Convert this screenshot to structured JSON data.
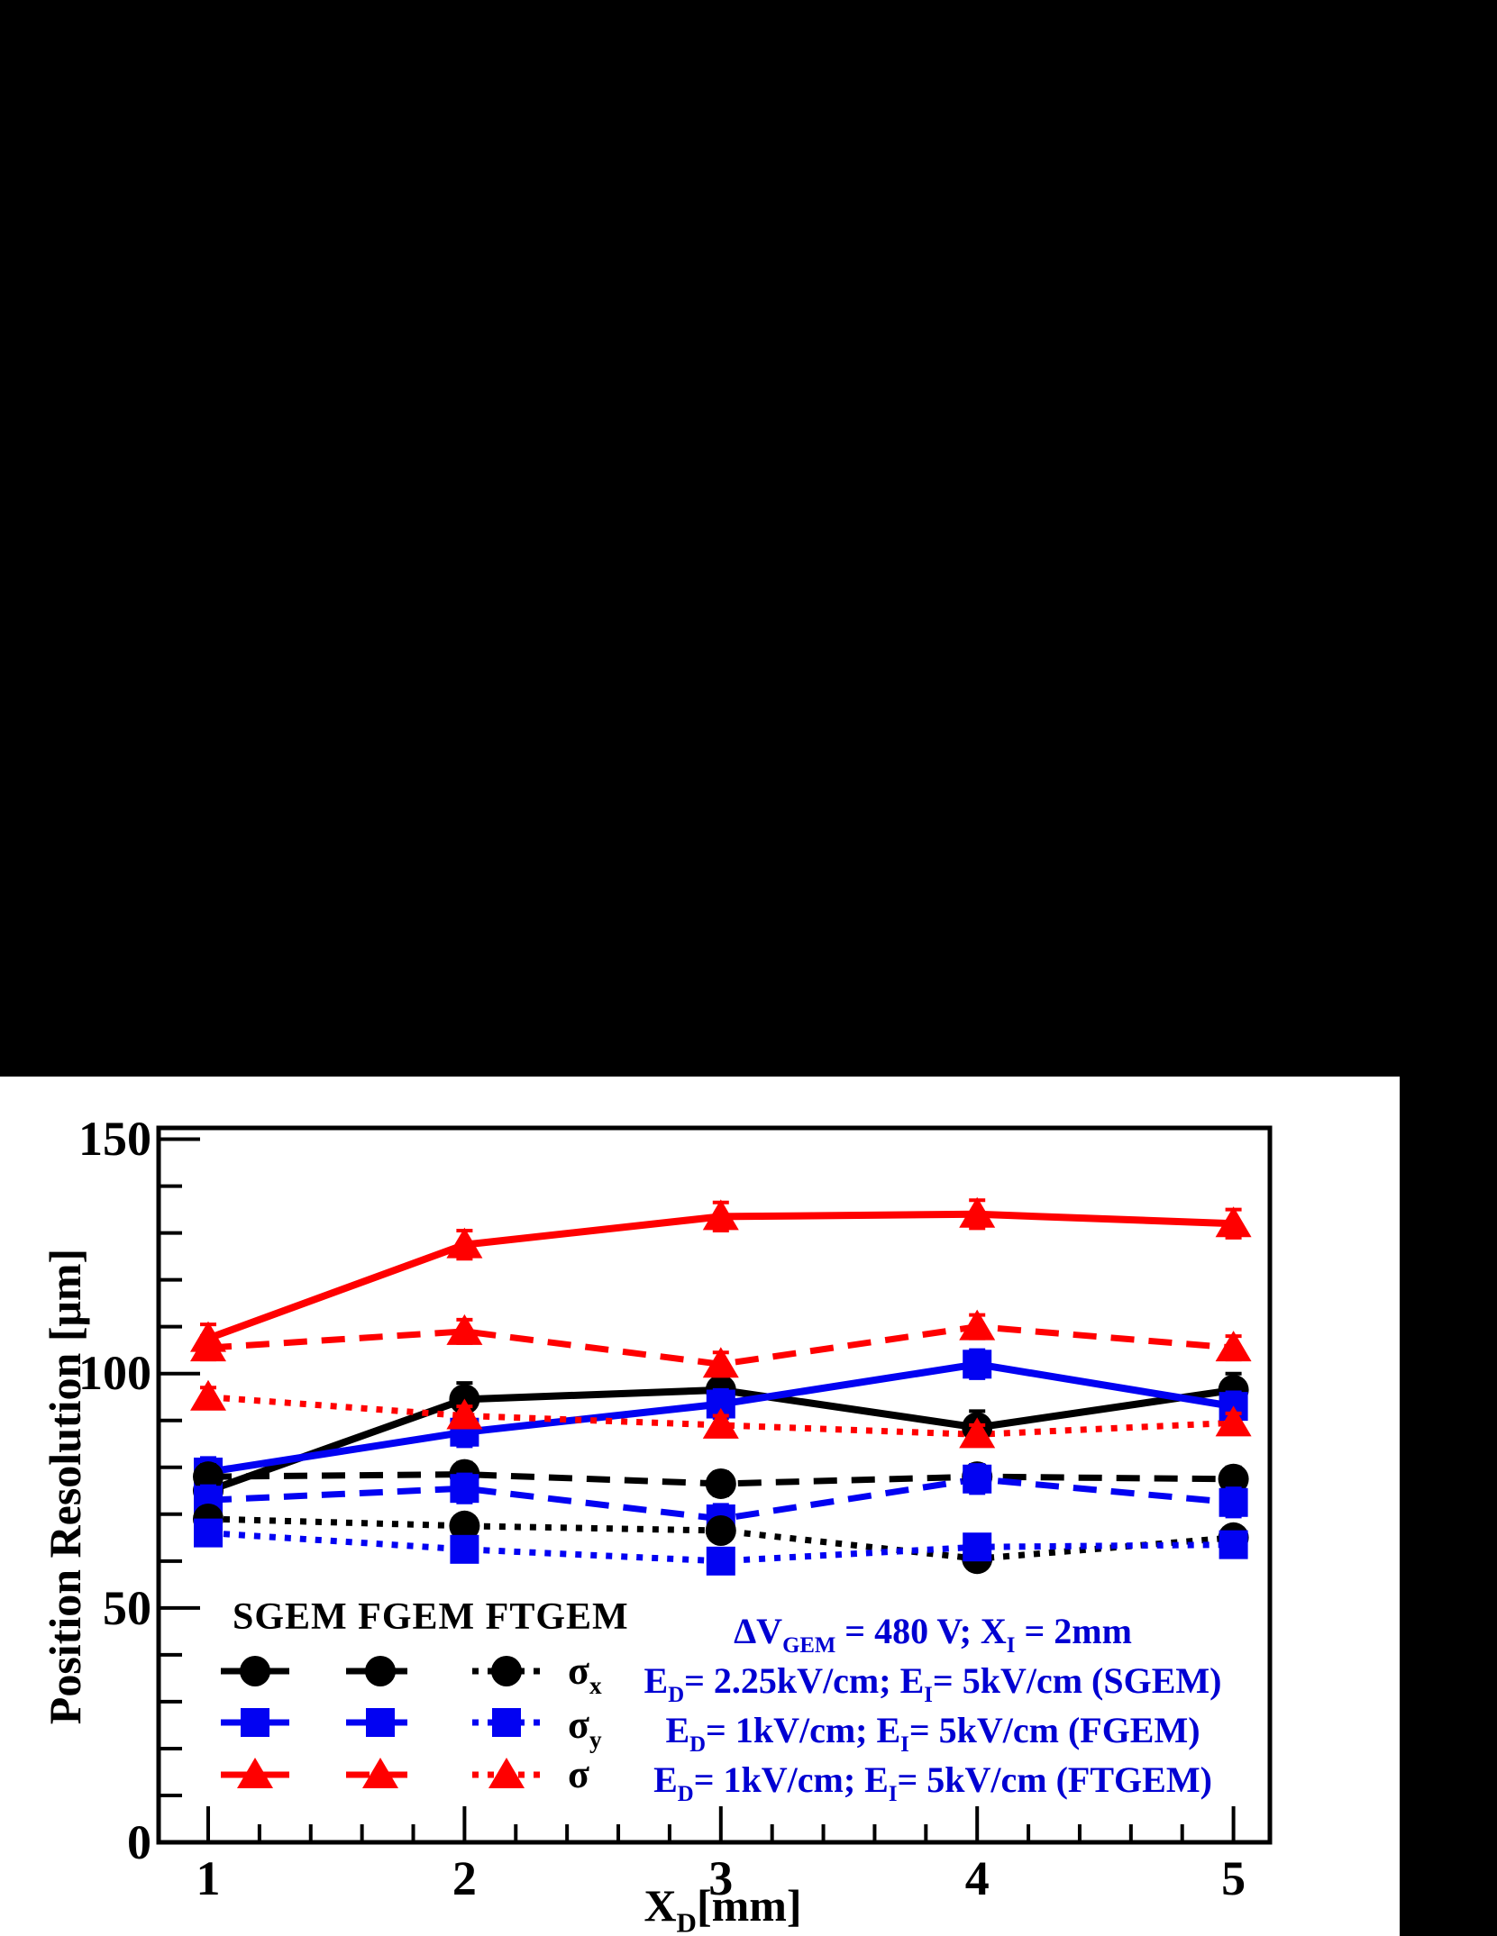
{
  "colors": {
    "background": "#000000",
    "panel": "#ffffff",
    "frame": "#000000",
    "black_series": "#000000",
    "blue_series": "#0202f2",
    "red_series": "#ff0000",
    "annotation_blue": "#0000d2"
  },
  "axes": {
    "x": {
      "title_segments": [
        {
          "t": "X"
        },
        {
          "t": "D",
          "sub": true
        },
        {
          "t": "[mm]"
        }
      ],
      "tick_labels": [
        "1",
        "2",
        "3",
        "4",
        "5"
      ],
      "tick_values": [
        1,
        2,
        3,
        4,
        5
      ],
      "minor_step": 0.2,
      "min": 0.81,
      "max": 5.14
    },
    "y": {
      "title": "Position Resolution [μm]",
      "tick_labels": [
        "0",
        "50",
        "100",
        "150"
      ],
      "tick_values": [
        0,
        50,
        100,
        150
      ],
      "minor_step": 10,
      "min": 0,
      "max": 152.5
    }
  },
  "legend": {
    "header": "SGEM FGEM FTGEM",
    "columns": [
      {
        "name": "SGEM",
        "style": "solid"
      },
      {
        "name": "FGEM",
        "style": "dashed"
      },
      {
        "name": "FTGEM",
        "style": "dotted"
      }
    ],
    "rows": [
      {
        "label_segments": [
          {
            "t": "σ"
          },
          {
            "t": "x",
            "sub": true
          }
        ],
        "marker": "circle",
        "color_key": "black_series"
      },
      {
        "label_segments": [
          {
            "t": "σ"
          },
          {
            "t": "y",
            "sub": true
          }
        ],
        "marker": "square",
        "color_key": "blue_series"
      },
      {
        "label_segments": [
          {
            "t": "σ"
          }
        ],
        "marker": "triangle",
        "color_key": "red_series"
      }
    ]
  },
  "annotations": [
    {
      "segments": [
        {
          "t": "ΔV"
        },
        {
          "t": "GEM",
          "sub": true
        },
        {
          "t": " = 480 V;  X"
        },
        {
          "t": "I",
          "sub": true
        },
        {
          "t": " = 2mm"
        }
      ]
    },
    {
      "segments": [
        {
          "t": "E"
        },
        {
          "t": "D",
          "sub": true
        },
        {
          "t": "= 2.25kV/cm; E"
        },
        {
          "t": "I",
          "sub": true
        },
        {
          "t": "= 5kV/cm (SGEM)"
        }
      ]
    },
    {
      "segments": [
        {
          "t": "E"
        },
        {
          "t": "D",
          "sub": true
        },
        {
          "t": "= 1kV/cm; E"
        },
        {
          "t": "I",
          "sub": true
        },
        {
          "t": "= 5kV/cm (FGEM)"
        }
      ]
    },
    {
      "segments": [
        {
          "t": "E"
        },
        {
          "t": "D",
          "sub": true
        },
        {
          "t": "= 1kV/cm; E"
        },
        {
          "t": "I",
          "sub": true
        },
        {
          "t": "= 5kV/cm (FTGEM)"
        }
      ]
    }
  ],
  "chart_data": {
    "type": "line",
    "title": "",
    "xlabel": "X_D [mm]",
    "ylabel": "Position Resolution [um]",
    "xlim": [
      0.81,
      5.14
    ],
    "ylim": [
      0,
      152.5
    ],
    "grid": false,
    "legend_position": "bottom-left-inside",
    "x": [
      1,
      2,
      3,
      4,
      5
    ],
    "series": [
      {
        "name": "SGEM sigma_x",
        "group": "SGEM",
        "style": "solid",
        "marker": "circle",
        "color_key": "black_series",
        "values": [
          75,
          94.5,
          96.5,
          88.5,
          96.5
        ],
        "yerr": 3.5
      },
      {
        "name": "SGEM sigma_y",
        "group": "SGEM",
        "style": "solid",
        "marker": "square",
        "color_key": "blue_series",
        "values": [
          79,
          87.5,
          93.5,
          102,
          93
        ],
        "yerr": 3
      },
      {
        "name": "SGEM sigma",
        "group": "SGEM",
        "style": "solid",
        "marker": "triangle",
        "color_key": "red_series",
        "values": [
          107.5,
          127.5,
          133.5,
          134,
          132
        ],
        "yerr": 3
      },
      {
        "name": "FGEM sigma_x",
        "group": "FGEM",
        "style": "dashed",
        "marker": "circle",
        "color_key": "black_series",
        "values": [
          78,
          78.5,
          76.5,
          78,
          77.5
        ],
        "yerr": 2.5
      },
      {
        "name": "FGEM sigma_y",
        "group": "FGEM",
        "style": "dashed",
        "marker": "square",
        "color_key": "blue_series",
        "values": [
          73,
          75.5,
          69,
          77.5,
          72.5
        ],
        "yerr": 3
      },
      {
        "name": "FGEM sigma",
        "group": "FGEM",
        "style": "dashed",
        "marker": "triangle",
        "color_key": "red_series",
        "values": [
          105.5,
          109,
          102,
          110,
          105.5
        ],
        "yerr": 2.5
      },
      {
        "name": "FTGEM sigma_x",
        "group": "FTGEM",
        "style": "dotted",
        "marker": "circle",
        "color_key": "black_series",
        "values": [
          69,
          67.5,
          66.5,
          60.5,
          65
        ],
        "yerr": 2
      },
      {
        "name": "FTGEM sigma_y",
        "group": "FTGEM",
        "style": "dotted",
        "marker": "square",
        "color_key": "blue_series",
        "values": [
          66,
          62.5,
          60,
          63,
          63.5
        ],
        "yerr": 2
      },
      {
        "name": "FTGEM sigma",
        "group": "FTGEM",
        "style": "dotted",
        "marker": "triangle",
        "color_key": "red_series",
        "values": [
          95,
          91,
          89,
          87,
          89.5
        ],
        "yerr": 2
      }
    ]
  }
}
